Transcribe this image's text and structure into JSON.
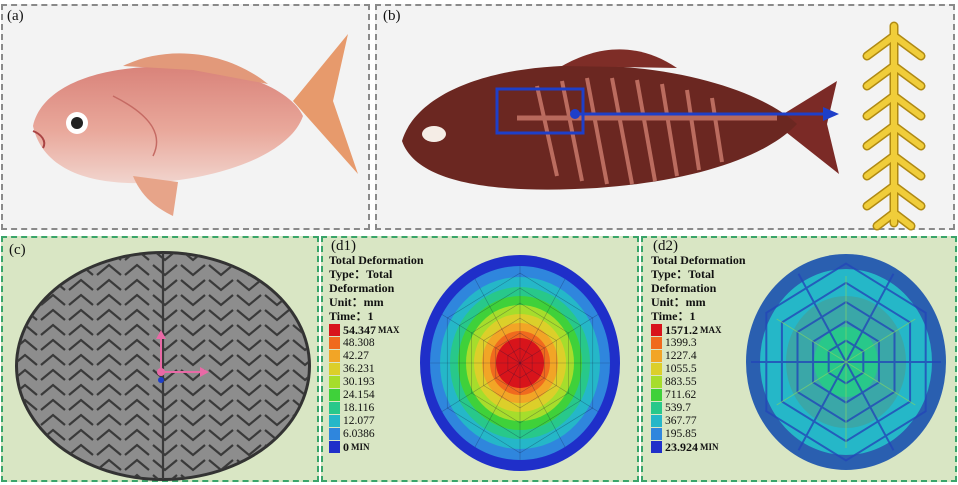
{
  "panels": {
    "a": {
      "label": "(a)"
    },
    "b": {
      "label": "(b)"
    },
    "c": {
      "label": "(c)"
    },
    "d1": {
      "label": "(d1)",
      "title": "Total Deformation",
      "type_line1": "Type：Total",
      "type_line2": "Deformation",
      "unit": "Unit：mm",
      "time": "Time：1",
      "max_tag": "MAX",
      "min_tag": "MIN",
      "levels": [
        "54.347",
        "48.308",
        "42.27",
        "36.231",
        "30.193",
        "24.154",
        "18.116",
        "12.077",
        "6.0386",
        "0"
      ]
    },
    "d2": {
      "label": "(d2)",
      "title": "Total Deformation",
      "type_line1": "Type：Total",
      "type_line2": "Deformation",
      "unit": "Unit：mm",
      "time": "Time：1",
      "max_tag": "MAX",
      "min_tag": "MIN",
      "levels": [
        "1571.2",
        "1399.3",
        "1227.4",
        "1055.5",
        "883.55",
        "711.62",
        "539.7",
        "367.77",
        "195.85",
        "23.924"
      ]
    }
  },
  "colors": {
    "scale": [
      "#d8141b",
      "#f06a1e",
      "#f2a526",
      "#dccf2a",
      "#a6dd2c",
      "#3fd13a",
      "#28c88a",
      "#25b7c8",
      "#2f86dd",
      "#1f2fc9"
    ],
    "panel_bg_d": "#d9e6c4",
    "spine": "#e8c12c",
    "arrow": "#1e3fc9"
  },
  "icons": {
    "fish_photo": "fish-icon",
    "xray_fish": "xray-fish-icon",
    "spine": "fishbone-icon",
    "pattern": "chevron-pattern-icon",
    "axes": "coordinate-axes-icon"
  }
}
